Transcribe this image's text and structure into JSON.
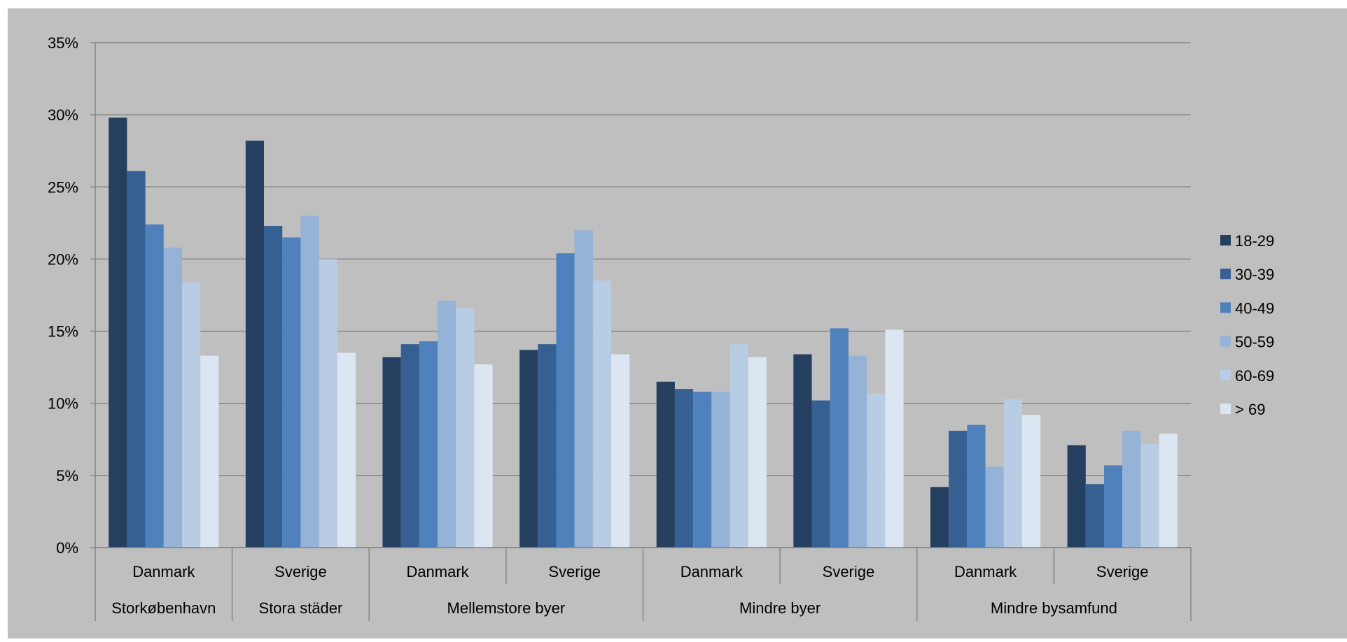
{
  "chart_data": {
    "type": "bar",
    "title": "",
    "xlabel": "",
    "ylabel": "",
    "ylim": [
      0,
      0.35
    ],
    "yticks": [
      0,
      0.05,
      0.1,
      0.15,
      0.2,
      0.25,
      0.3,
      0.35
    ],
    "ytick_labels": [
      "0%",
      "5%",
      "10%",
      "15%",
      "20%",
      "25%",
      "30%",
      "35%"
    ],
    "grid": true,
    "legend_position": "right",
    "colors": [
      "#243F60",
      "#366092",
      "#4F81BD",
      "#95B3D7",
      "#B8CCE4",
      "#DCE6F2"
    ],
    "background": "#BFBFBF",
    "categories": [
      "Danmark",
      "Sverige",
      "Danmark",
      "Sverige",
      "Danmark",
      "Sverige",
      "Danmark",
      "Sverige"
    ],
    "groups": [
      {
        "label": "Storkøbenhavn",
        "span": 1
      },
      {
        "label": "Stora städer",
        "span": 1
      },
      {
        "label": "Mellemstore byer",
        "span": 2
      },
      {
        "label": "Mindre byer",
        "span": 2
      },
      {
        "label": "Mindre bysamfund",
        "span": 2
      }
    ],
    "series": [
      {
        "name": "18-29",
        "values": [
          0.298,
          0.282,
          0.132,
          0.137,
          0.115,
          0.134,
          0.042,
          0.071
        ]
      },
      {
        "name": "30-39",
        "values": [
          0.261,
          0.223,
          0.141,
          0.141,
          0.11,
          0.102,
          0.081,
          0.044
        ]
      },
      {
        "name": "40-49",
        "values": [
          0.224,
          0.215,
          0.143,
          0.204,
          0.108,
          0.152,
          0.085,
          0.057
        ]
      },
      {
        "name": "50-59",
        "values": [
          0.208,
          0.23,
          0.171,
          0.22,
          0.108,
          0.133,
          0.056,
          0.081
        ]
      },
      {
        "name": "60-69",
        "values": [
          0.184,
          0.2,
          0.166,
          0.185,
          0.141,
          0.107,
          0.103,
          0.072
        ]
      },
      {
        "name": "> 69",
        "values": [
          0.133,
          0.135,
          0.127,
          0.134,
          0.132,
          0.151,
          0.092,
          0.079
        ]
      }
    ]
  }
}
